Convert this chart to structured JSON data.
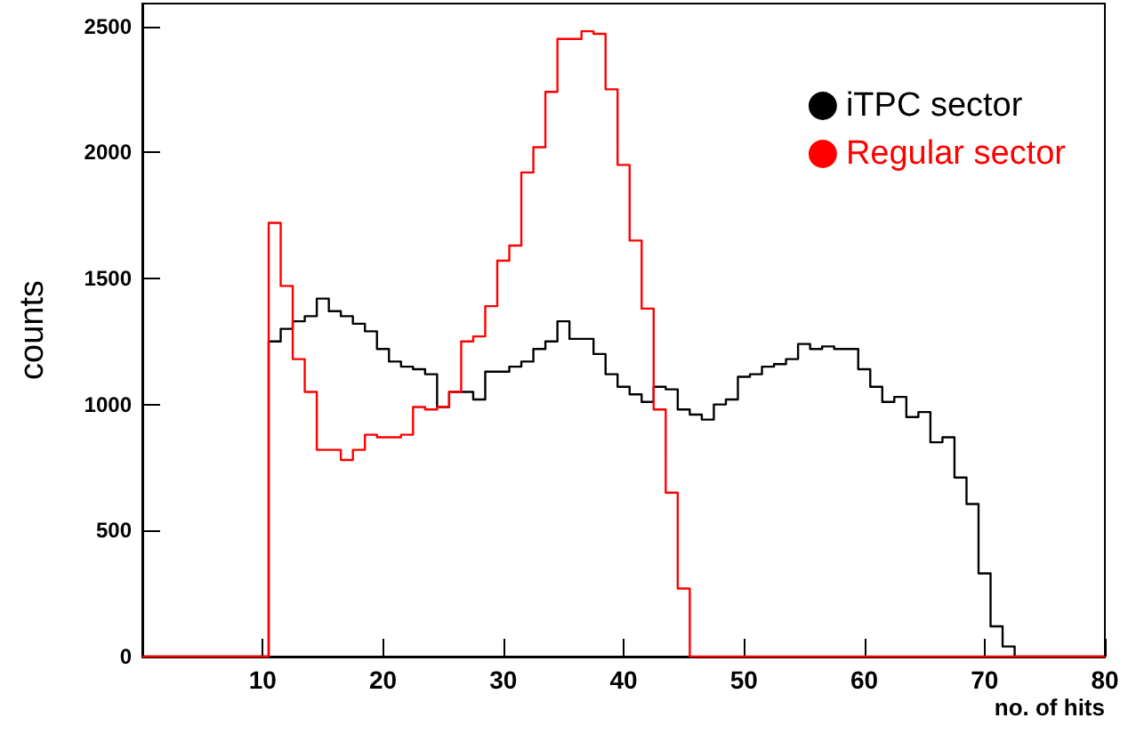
{
  "chart_data": {
    "type": "histogram",
    "xlabel": "no. of hits",
    "ylabel": "counts",
    "bins": [
      0,
      10.5,
      11.5,
      12.5,
      13.5,
      14.5,
      15.5,
      16.5,
      17.5,
      18.5,
      19.5,
      20.5,
      21.5,
      22.5,
      23.5,
      24.5,
      25.5,
      26.5,
      27.5,
      28.5,
      29.5,
      30.5,
      31.5,
      32.5,
      33.5,
      34.5,
      35.5,
      36.5,
      37.5,
      38.5,
      39.5,
      40.5,
      41.5,
      42.5,
      43.5,
      44.5,
      45.5,
      46.5,
      47.5,
      48.5,
      49.5,
      50.5,
      51.5,
      52.5,
      53.5,
      54.5,
      55.5,
      56.5,
      57.5,
      58.5,
      59.5,
      60.5,
      61.5,
      62.5,
      63.5,
      64.5,
      65.5,
      66.5,
      67.5,
      68.5,
      69.5,
      70.5,
      71.5,
      72.5,
      80
    ],
    "series": [
      {
        "name": "iTPC sector",
        "color": "#000000",
        "values": [
          0,
          1250,
          1300,
          1330,
          1350,
          1420,
          1370,
          1350,
          1320,
          1290,
          1220,
          1170,
          1150,
          1140,
          1120,
          990,
          1050,
          1050,
          1020,
          1130,
          1130,
          1150,
          1170,
          1220,
          1250,
          1330,
          1260,
          1260,
          1200,
          1120,
          1070,
          1040,
          1010,
          1070,
          1060,
          980,
          960,
          940,
          1000,
          1020,
          1110,
          1120,
          1150,
          1160,
          1180,
          1240,
          1220,
          1230,
          1220,
          1220,
          1140,
          1070,
          1010,
          1030,
          950,
          970,
          850,
          870,
          710,
          605,
          330,
          120,
          40,
          0
        ]
      },
      {
        "name": "Regular sector",
        "color": "#ff0000",
        "values": [
          0,
          1720,
          1470,
          1180,
          1050,
          820,
          820,
          780,
          820,
          880,
          870,
          870,
          880,
          990,
          980,
          990,
          1050,
          1250,
          1270,
          1390,
          1570,
          1630,
          1920,
          2020,
          2240,
          2450,
          2450,
          2480,
          2470,
          2250,
          1950,
          1650,
          1380,
          980,
          650,
          270,
          0,
          0,
          0,
          0,
          0,
          0,
          0,
          0,
          0,
          0,
          0,
          0,
          0,
          0,
          0,
          0,
          0,
          0,
          0,
          0,
          0,
          0,
          0,
          0,
          0,
          0,
          0,
          0
        ]
      }
    ],
    "xlim": [
      0,
      80
    ],
    "xticks": [
      10,
      20,
      30,
      40,
      50,
      60,
      70,
      80
    ],
    "ylim": [
      0,
      2590
    ],
    "yticks": [
      0,
      500,
      1000,
      1500,
      2000,
      2500
    ],
    "grid": false,
    "legend": "top right",
    "marker": "circle"
  }
}
